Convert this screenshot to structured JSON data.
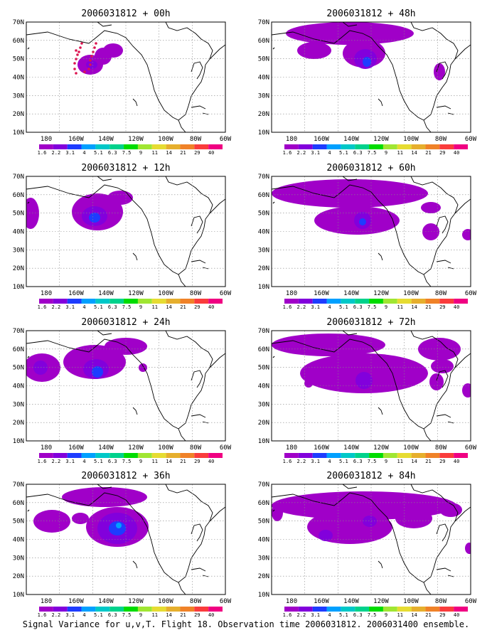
{
  "footer": "Signal Variance for u,v,T. Flight 18. Observation time 2006031812. 2006031400 ensemble.",
  "lat_labels": [
    "70N",
    "60N",
    "50N",
    "40N",
    "30N",
    "20N",
    "10N"
  ],
  "lon_labels": [
    "180",
    "160W",
    "140W",
    "120W",
    "100W",
    "80W",
    "60W"
  ],
  "scale": {
    "labels": [
      "1.6",
      "2.2",
      "3.1",
      "4",
      "5.1",
      "6.3",
      "7.5",
      "9",
      "11",
      "14",
      "21",
      "29",
      "40"
    ],
    "colors": [
      "#a000c8",
      "#8200dc",
      "#1e3cff",
      "#00a0ff",
      "#00c8c8",
      "#00d28c",
      "#00dc00",
      "#a0e632",
      "#e6dc32",
      "#e6af2d",
      "#f08228",
      "#fa3c3c",
      "#f00082"
    ]
  },
  "panels": [
    {
      "title": "2006031812 + 00h"
    },
    {
      "title": "2006031812 + 48h"
    },
    {
      "title": "2006031812 + 12h"
    },
    {
      "title": "2006031812 + 60h"
    },
    {
      "title": "2006031812 + 24h"
    },
    {
      "title": "2006031812 + 72h"
    },
    {
      "title": "2006031812 + 36h"
    },
    {
      "title": "2006031812 + 84h"
    }
  ]
}
